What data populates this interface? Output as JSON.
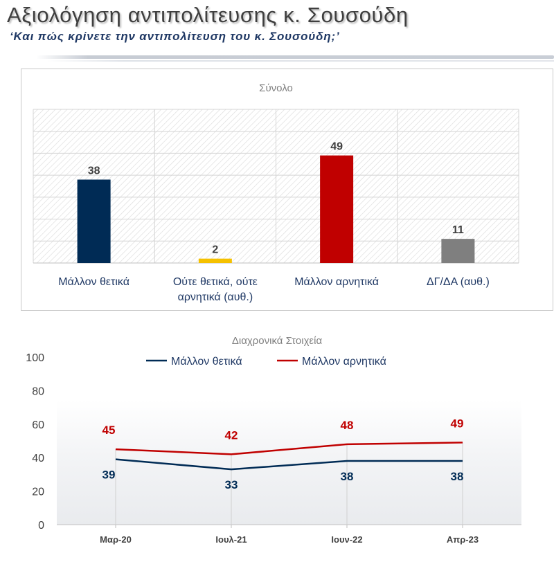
{
  "header": {
    "title": "Αξιολόγηση αντιπολίτευσης κ. Σουσούδη",
    "subtitle": "‘Και πώς κρίνετε την αντιπολίτευση του κ. Σουσούδη;’"
  },
  "colors": {
    "positive": "#002b55",
    "neutral": "#f5c100",
    "negative": "#c00000",
    "dk": "#7f7f7f"
  },
  "chart_data": [
    {
      "type": "bar",
      "title": "Σύνολο",
      "categories": [
        [
          "Μάλλον θετικά"
        ],
        [
          "Ούτε θετικά, ούτε",
          "αρνητικά (αυθ.)"
        ],
        [
          "Μάλλον αρνητικά"
        ],
        [
          "ΔΓ/ΔΑ (αυθ.)"
        ]
      ],
      "values": [
        38,
        2,
        49,
        11
      ],
      "bar_colors": [
        "#002b55",
        "#f5c100",
        "#c00000",
        "#7f7f7f"
      ],
      "ylim": [
        0,
        70
      ],
      "grid": true
    },
    {
      "type": "line",
      "title": "Διαχρονικά Στοιχεία",
      "x": [
        "Μαρ-20",
        "Ιουλ-21",
        "Ιουν-22",
        "Απρ-23"
      ],
      "series": [
        {
          "name": "Μάλλον θετικά",
          "values": [
            39,
            33,
            38,
            38
          ],
          "color": "#002b55"
        },
        {
          "name": "Μάλλον αρνητικά",
          "values": [
            45,
            42,
            48,
            49
          ],
          "color": "#c00000"
        }
      ],
      "ylim": [
        0,
        100
      ],
      "yticks": [
        0,
        20,
        40,
        60,
        80,
        100
      ],
      "legend": "top-center",
      "grid": false
    }
  ]
}
